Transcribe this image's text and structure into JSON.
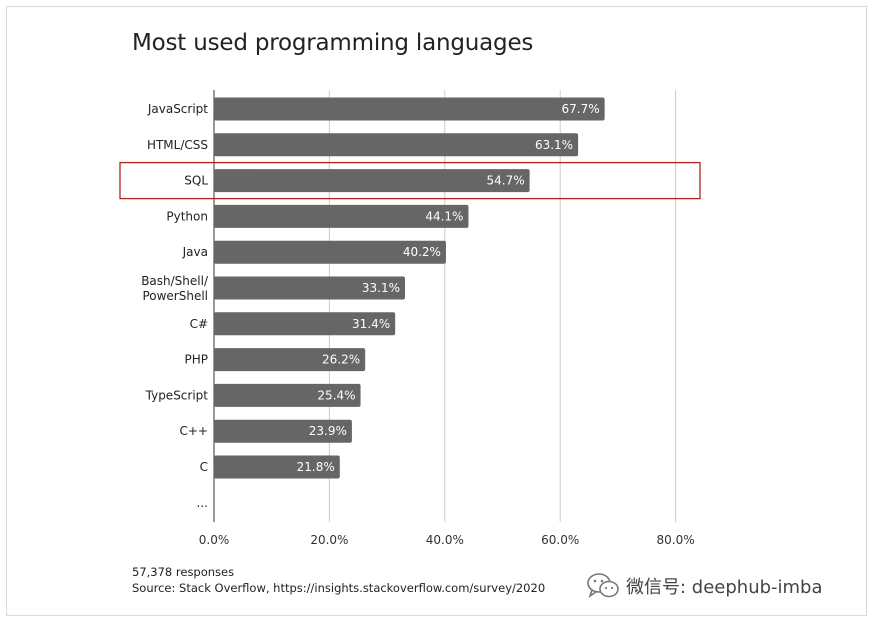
{
  "chart_data": {
    "type": "bar",
    "orientation": "horizontal",
    "title": "Most used programming languages",
    "categories": [
      "JavaScript",
      "HTML/CSS",
      "SQL",
      "Python",
      "Java",
      "Bash/Shell/ PowerShell",
      "C#",
      "PHP",
      "TypeScript",
      "C++",
      "C",
      "..."
    ],
    "values": [
      67.7,
      63.1,
      54.7,
      44.1,
      40.2,
      33.1,
      31.4,
      26.2,
      25.4,
      23.9,
      21.8,
      null
    ],
    "value_labels": [
      "67.7%",
      "63.1%",
      "54.7%",
      "44.1%",
      "40.2%",
      "33.1%",
      "31.4%",
      "26.2%",
      "25.4%",
      "23.9%",
      "21.8%",
      ""
    ],
    "x_ticks": [
      "0.0%",
      "20.0%",
      "40.0%",
      "60.0%",
      "80.0%"
    ],
    "xlim": [
      0,
      80
    ],
    "grid": true,
    "highlighted_category": "SQL",
    "colors": {
      "bar": "#666666",
      "highlight_box": "#b22222",
      "grid": "#cccccc",
      "bar_label": "#ffffff"
    }
  },
  "footer": {
    "responses": "57,378 responses",
    "source": "Source: Stack Overflow, https://insights.stackoverflow.com/survey/2020"
  },
  "watermark": {
    "text": "微信号: deephub-imba",
    "icon": "wechat-icon"
  }
}
